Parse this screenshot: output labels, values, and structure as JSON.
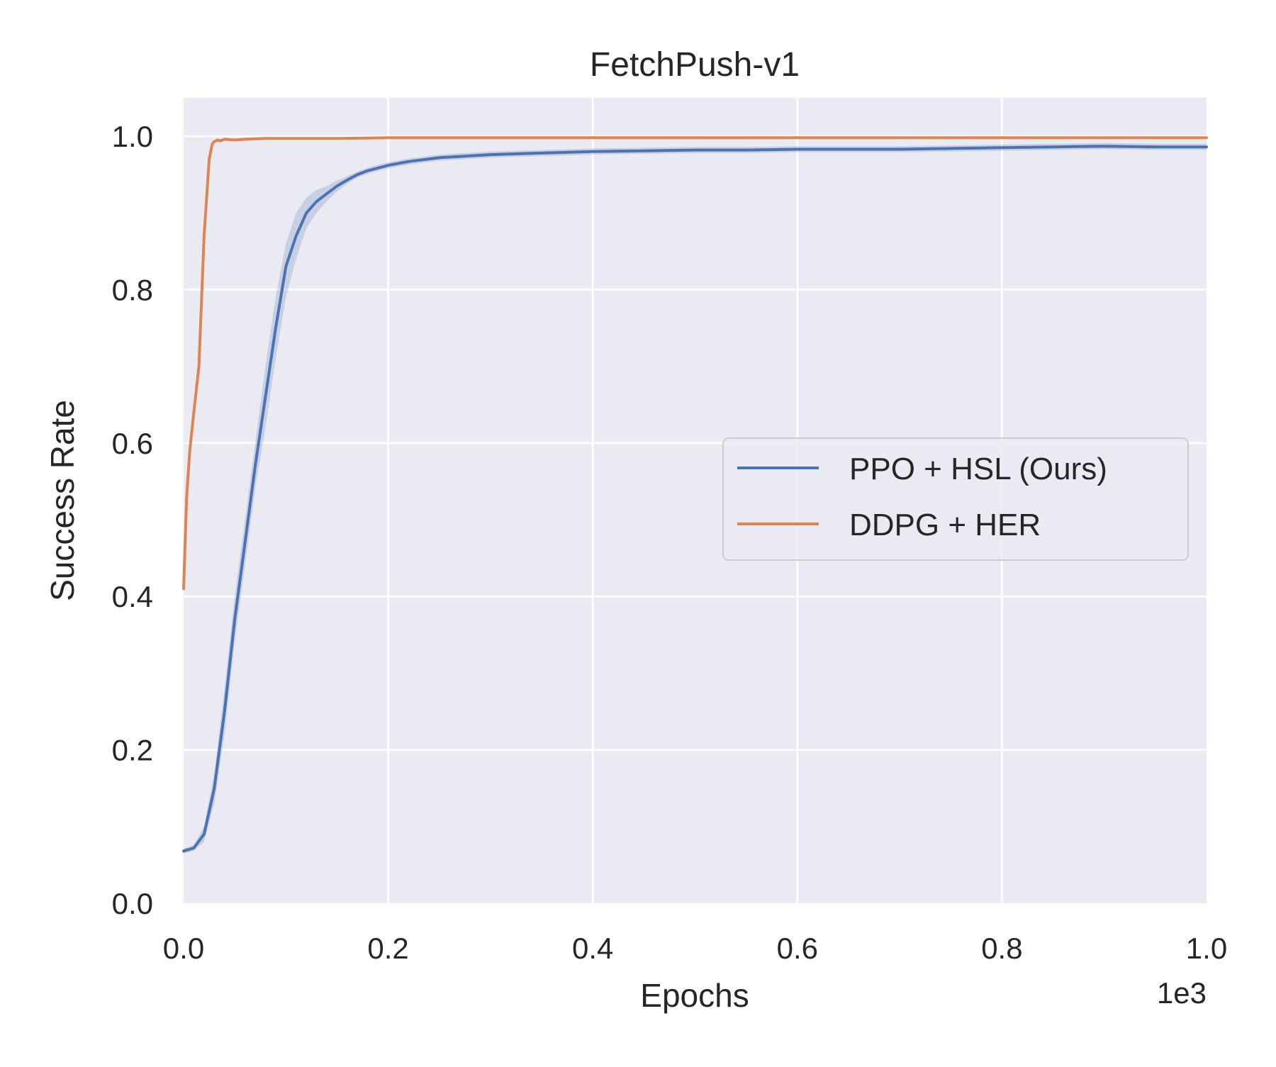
{
  "chart_data": {
    "type": "line",
    "title": "FetchPush-v1",
    "xlabel": "Epochs",
    "ylabel": "Success Rate",
    "x_offset_text": "1e3",
    "xlim": [
      0.0,
      1.0
    ],
    "ylim": [
      0.0,
      1.05
    ],
    "x_ticks": [
      0.0,
      0.2,
      0.4,
      0.6,
      0.8,
      1.0
    ],
    "x_tick_labels": [
      "0.0",
      "0.2",
      "0.4",
      "0.6",
      "0.8",
      "1.0"
    ],
    "y_ticks": [
      0.0,
      0.2,
      0.4,
      0.6,
      0.8,
      1.0
    ],
    "y_tick_labels": [
      "0.0",
      "0.2",
      "0.4",
      "0.6",
      "0.8",
      "1.0"
    ],
    "grid": true,
    "legend_position": "center-right",
    "background_color": "#eaeaf2",
    "series": [
      {
        "name": "PPO + HSL (Ours)",
        "color": "#4c72b0",
        "band_color": "#4c72b0",
        "x": [
          0.0,
          0.01,
          0.02,
          0.03,
          0.04,
          0.05,
          0.06,
          0.07,
          0.08,
          0.09,
          0.1,
          0.11,
          0.12,
          0.13,
          0.14,
          0.15,
          0.16,
          0.17,
          0.18,
          0.2,
          0.22,
          0.25,
          0.3,
          0.35,
          0.4,
          0.45,
          0.5,
          0.55,
          0.6,
          0.65,
          0.7,
          0.75,
          0.8,
          0.85,
          0.9,
          0.95,
          1.0
        ],
        "y": [
          0.068,
          0.072,
          0.09,
          0.15,
          0.25,
          0.37,
          0.47,
          0.57,
          0.66,
          0.75,
          0.83,
          0.87,
          0.9,
          0.915,
          0.925,
          0.935,
          0.943,
          0.95,
          0.955,
          0.962,
          0.967,
          0.972,
          0.976,
          0.978,
          0.98,
          0.981,
          0.982,
          0.982,
          0.983,
          0.983,
          0.983,
          0.984,
          0.985,
          0.986,
          0.987,
          0.986,
          0.986
        ],
        "y_lower": [
          0.065,
          0.068,
          0.08,
          0.13,
          0.22,
          0.34,
          0.44,
          0.54,
          0.62,
          0.71,
          0.79,
          0.84,
          0.88,
          0.9,
          0.915,
          0.928,
          0.938,
          0.946,
          0.951,
          0.958,
          0.963,
          0.968,
          0.972,
          0.974,
          0.976,
          0.977,
          0.978,
          0.978,
          0.979,
          0.979,
          0.979,
          0.98,
          0.981,
          0.982,
          0.983,
          0.982,
          0.982
        ],
        "y_upper": [
          0.071,
          0.076,
          0.1,
          0.17,
          0.28,
          0.4,
          0.5,
          0.6,
          0.7,
          0.79,
          0.86,
          0.9,
          0.92,
          0.93,
          0.935,
          0.942,
          0.948,
          0.954,
          0.959,
          0.966,
          0.971,
          0.976,
          0.98,
          0.982,
          0.984,
          0.985,
          0.986,
          0.986,
          0.987,
          0.987,
          0.987,
          0.988,
          0.989,
          0.99,
          0.991,
          0.99,
          0.99
        ]
      },
      {
        "name": "DDPG + HER",
        "color": "#dd8452",
        "x": [
          0.0,
          0.003,
          0.006,
          0.01,
          0.015,
          0.02,
          0.025,
          0.028,
          0.03,
          0.033,
          0.036,
          0.04,
          0.05,
          0.06,
          0.08,
          0.1,
          0.15,
          0.2,
          0.3,
          0.4,
          0.5,
          0.6,
          0.7,
          0.8,
          0.9,
          1.0
        ],
        "y": [
          0.41,
          0.53,
          0.59,
          0.64,
          0.7,
          0.87,
          0.97,
          0.99,
          0.993,
          0.995,
          0.994,
          0.996,
          0.995,
          0.996,
          0.997,
          0.997,
          0.997,
          0.998,
          0.998,
          0.998,
          0.998,
          0.998,
          0.998,
          0.998,
          0.998,
          0.998
        ]
      }
    ]
  }
}
